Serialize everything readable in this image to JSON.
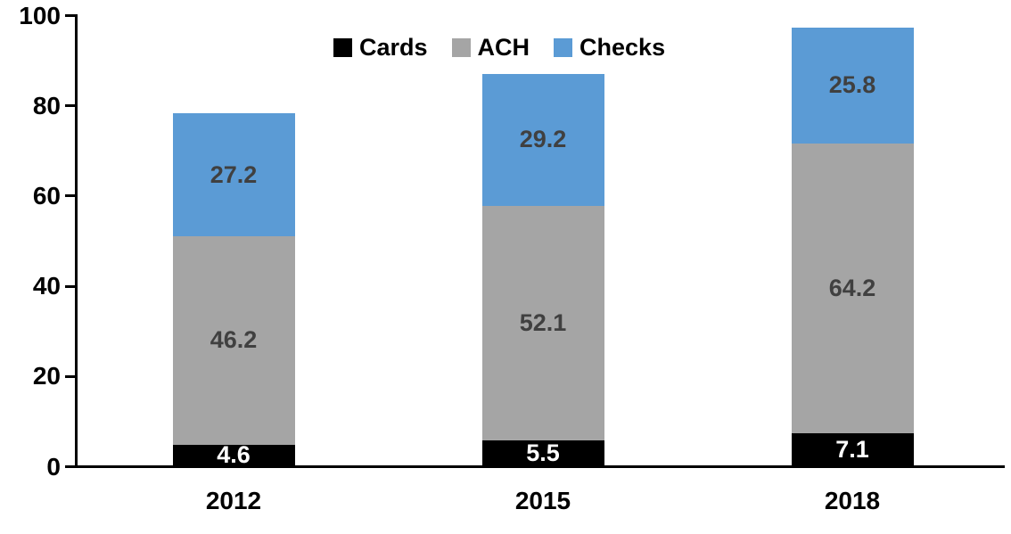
{
  "chart_data": {
    "type": "bar",
    "stacked": true,
    "title": "",
    "xlabel": "",
    "ylabel": "",
    "categories": [
      "2012",
      "2015",
      "2018"
    ],
    "series": [
      {
        "name": "Cards",
        "color": "#000000",
        "label_color": "#FFFFFF",
        "values": [
          4.6,
          5.5,
          7.1
        ]
      },
      {
        "name": "ACH",
        "color": "#A5A5A5",
        "label_color": "#404040",
        "values": [
          46.2,
          52.1,
          64.2
        ]
      },
      {
        "name": "Checks",
        "color": "#5B9BD5",
        "label_color": "#404040",
        "values": [
          27.2,
          29.2,
          25.8
        ]
      }
    ],
    "totals": [
      78.0,
      86.8,
      97.1
    ],
    "ylim": [
      0,
      100
    ],
    "yticks": [
      0,
      20,
      40,
      60,
      80,
      100
    ],
    "grid": false,
    "value_labels": true,
    "legend_position": "top-center",
    "axis_color": "#000000",
    "text_color": "#000000"
  }
}
